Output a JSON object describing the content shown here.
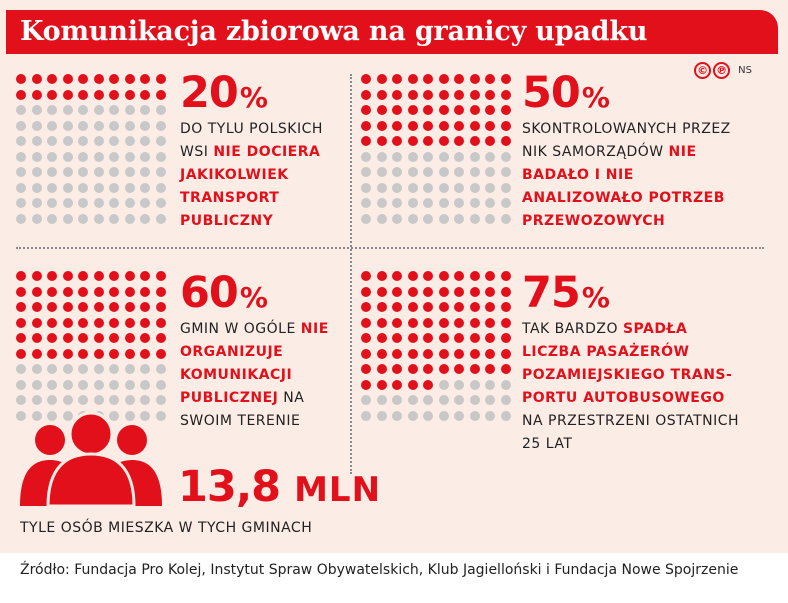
{
  "title": "Komunikacja zbiorowa na granicy upadku",
  "credit": {
    "icons": [
      "copyright-icon",
      "phonogram-icon"
    ],
    "symbol_c": "©",
    "symbol_p": "℗",
    "author": "NS"
  },
  "colors": {
    "accent": "#e2101b",
    "inactive_dot": "#c8c8c8",
    "background": "#fbece6"
  },
  "chart_data": {
    "type": "waffle",
    "grid": {
      "rows": 10,
      "cols": 10,
      "fill_order": "row-major"
    },
    "panels": [
      {
        "value": 20,
        "pct_label": "20",
        "pct_symbol": "%",
        "segments": [
          {
            "text": "do tylu polskich wsi ",
            "highlight": false
          },
          {
            "text": "nie dociera jakikolwiek transport publiczny",
            "highlight": true
          }
        ]
      },
      {
        "value": 50,
        "pct_label": "50",
        "pct_symbol": "%",
        "segments": [
          {
            "text": "skontrolowanych przez NIK samorządów ",
            "highlight": false
          },
          {
            "text": "nie badało i nie analizowało potrzeb przewozowych",
            "highlight": true
          }
        ]
      },
      {
        "value": 60,
        "pct_label": "60",
        "pct_symbol": "%",
        "segments": [
          {
            "text": "gmin w ogóle ",
            "highlight": false
          },
          {
            "text": "nie organizuje komunikacji publicznej",
            "highlight": true
          },
          {
            "text": " na swoim terenie",
            "highlight": false
          }
        ]
      },
      {
        "value": 75,
        "pct_label": "75",
        "pct_symbol": "%",
        "segments": [
          {
            "text": "tak bardzo ",
            "highlight": false
          },
          {
            "text": "spadła liczba pasażerów pozamiejskiego trans-portu autobusowego",
            "highlight": true
          },
          {
            "text": " na przestrzeni ostatnich 25 lat",
            "highlight": false
          }
        ]
      }
    ],
    "people_stat": {
      "value": "13,8",
      "unit": "mln",
      "caption": "tyle osób mieszka w tych gminach"
    }
  },
  "source": "Źródło: Fundacja Pro Kolej, Instytut Spraw Obywatelskich, Klub Jagielloński i Fundacja Nowe Spojrzenie"
}
